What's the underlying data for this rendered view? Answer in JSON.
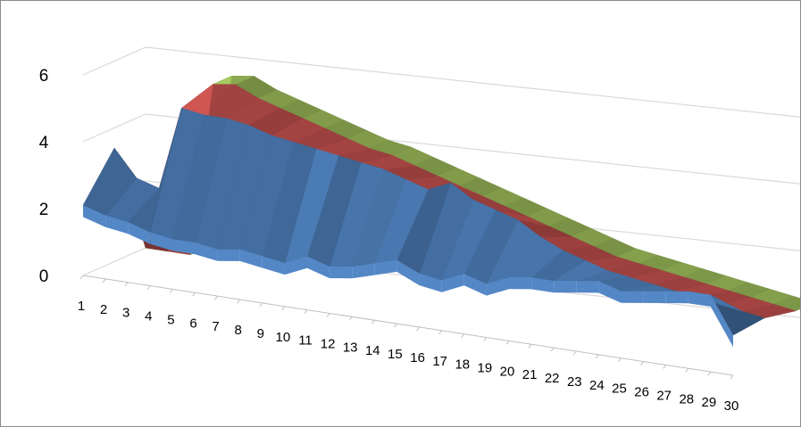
{
  "chart_data": {
    "type": "surface",
    "title": "",
    "xlabel": "",
    "ylabel": "",
    "ylim": [
      0,
      6
    ],
    "y_ticks": [
      "0",
      "2",
      "4",
      "6"
    ],
    "categories": [
      "1",
      "2",
      "3",
      "4",
      "5",
      "6",
      "7",
      "8",
      "9",
      "10",
      "11",
      "12",
      "13",
      "14",
      "15",
      "16",
      "17",
      "18",
      "19",
      "20",
      "21",
      "22",
      "23",
      "24",
      "25",
      "26",
      "27",
      "28",
      "29",
      "30"
    ],
    "series": [
      {
        "values": [
          2.1,
          1.9,
          1.8,
          1.6,
          1.5,
          1.5,
          1.4,
          1.5,
          1.4,
          1.3,
          1.6,
          1.4,
          1.5,
          1.7,
          1.9,
          1.6,
          1.5,
          1.8,
          1.6,
          1.9,
          2.0,
          2.0,
          2.1,
          2.2,
          2.0,
          2.1,
          2.2,
          2.3,
          2.3,
          1.2
        ]
      },
      {
        "values": [
          3.4,
          2.6,
          2.4,
          4.9,
          4.8,
          4.8,
          4.7,
          4.5,
          4.4,
          4.3,
          4.2,
          4.1,
          4.0,
          3.8,
          3.6,
          3.9,
          3.5,
          3.3,
          3.1,
          2.7,
          2.4,
          2.2,
          2.0,
          1.9,
          1.8,
          1.7,
          1.6,
          1.5,
          1.4,
          1.3
        ]
      },
      {
        "values": [
          0,
          0,
          0,
          5.2,
          5.3,
          5.0,
          4.8,
          4.6,
          4.4,
          4.2,
          4.0,
          3.9,
          3.7,
          3.5,
          3.3,
          3.1,
          2.9,
          2.7,
          2.5,
          2.3,
          2.1,
          1.9,
          1.8,
          1.7,
          1.6,
          1.5,
          1.4,
          1.3,
          1.2,
          1.1
        ]
      }
    ],
    "colors": [
      "#4f81bd",
      "#c0504d",
      "#9bbb59"
    ],
    "grid": true,
    "legend": "none"
  }
}
